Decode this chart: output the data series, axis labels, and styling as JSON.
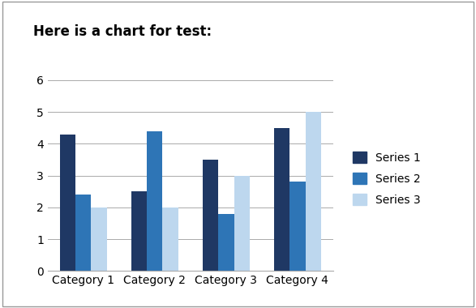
{
  "title": "Here is a chart for test:",
  "categories": [
    "Category 1",
    "Category 2",
    "Category 3",
    "Category 4"
  ],
  "series": [
    {
      "name": "Series 1",
      "values": [
        4.3,
        2.5,
        3.5,
        4.5
      ],
      "color": "#1F3864"
    },
    {
      "name": "Series 2",
      "values": [
        2.4,
        4.4,
        1.8,
        2.8
      ],
      "color": "#2E75B6"
    },
    {
      "name": "Series 3",
      "values": [
        2.0,
        2.0,
        3.0,
        5.0
      ],
      "color": "#BDD7EE"
    }
  ],
  "ylim": [
    0,
    6
  ],
  "yticks": [
    0,
    1,
    2,
    3,
    4,
    5,
    6
  ],
  "background_color": "#ffffff",
  "border_color": "#999999",
  "title_fontsize": 12,
  "tick_fontsize": 10,
  "legend_fontsize": 10,
  "bar_width": 0.22
}
